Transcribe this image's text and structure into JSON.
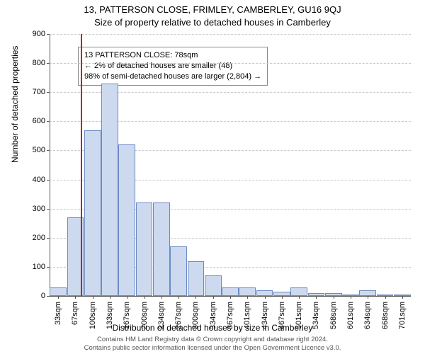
{
  "title_line1": "13, PATTERSON CLOSE, FRIMLEY, CAMBERLEY, GU16 9QJ",
  "title_line2": "Size of property relative to detached houses in Camberley",
  "y_axis_label": "Number of detached properties",
  "x_axis_label": "Distribution of detached houses by size in Camberley",
  "footer_line1": "Contains HM Land Registry data © Crown copyright and database right 2024.",
  "footer_line2": "Contains public sector information licensed under the Open Government Licence v3.0.",
  "chart": {
    "type": "histogram",
    "ymin": 0,
    "ymax": 900,
    "ytick_step": 100,
    "bar_fill": "#cdd9ef",
    "bar_stroke": "#6b8ac4",
    "grid_color": "#c8c8c8",
    "background": "#ffffff",
    "marker_color": "#d01c1c",
    "marker_x_value": 78,
    "x_categories": [
      "33sqm",
      "67sqm",
      "100sqm",
      "133sqm",
      "167sqm",
      "200sqm",
      "234sqm",
      "267sqm",
      "300sqm",
      "334sqm",
      "367sqm",
      "401sqm",
      "434sqm",
      "467sqm",
      "501sqm",
      "534sqm",
      "568sqm",
      "601sqm",
      "634sqm",
      "668sqm",
      "701sqm"
    ],
    "bar_values": [
      30,
      270,
      570,
      730,
      520,
      320,
      320,
      170,
      120,
      70,
      30,
      30,
      20,
      15,
      30,
      10,
      10,
      0,
      20,
      0,
      5
    ],
    "annotation": {
      "line1": "13 PATTERSON CLOSE: 78sqm",
      "line2": "← 2% of detached houses are smaller (48)",
      "line3": "98% of semi-detached houses are larger (2,804) →"
    },
    "title_fontsize": 13,
    "axis_label_fontsize": 12,
    "tick_fontsize": 11
  }
}
